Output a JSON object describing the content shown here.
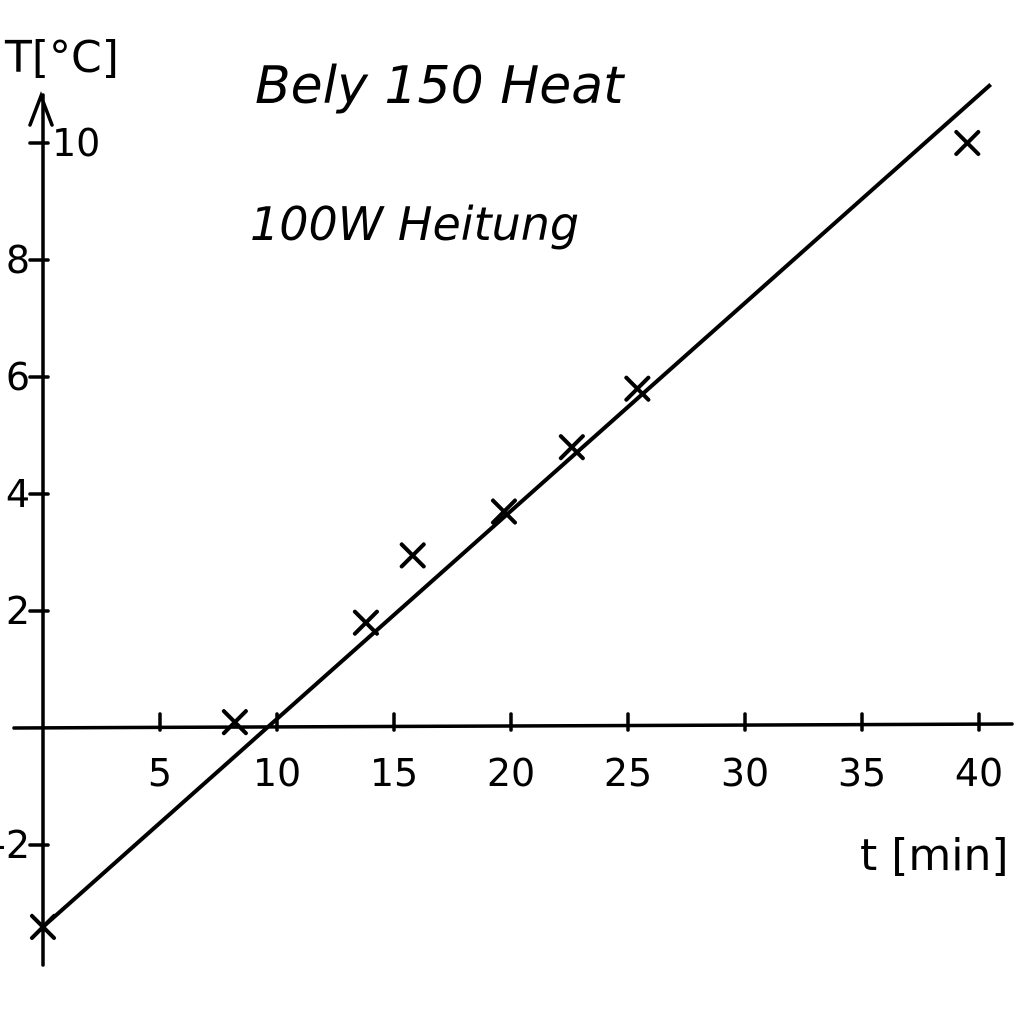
{
  "chart_data": {
    "type": "scatter",
    "title": "Bely 150 Heat",
    "subtitle": "100W Heitung",
    "xlabel": "t [min]",
    "ylabel": "T[°C]",
    "xlim": [
      0,
      42
    ],
    "ylim": [
      -4,
      11
    ],
    "x_ticks": [
      5,
      10,
      15,
      20,
      25,
      30,
      35,
      40
    ],
    "y_ticks": [
      -2,
      2,
      4,
      6,
      8,
      10
    ],
    "x_tick_labels": [
      "5",
      "10",
      "15",
      "20",
      "25",
      "30",
      "35",
      "40"
    ],
    "y_tick_labels": [
      "-2",
      "2",
      "4",
      "6",
      "8",
      "10"
    ],
    "grid": false,
    "series": [
      {
        "points": [
          {
            "x": 0,
            "y": -3.4
          },
          {
            "x": 8.2,
            "y": 0.1
          },
          {
            "x": 13.8,
            "y": 1.8
          },
          {
            "x": 15.8,
            "y": 2.95
          },
          {
            "x": 19.7,
            "y": 3.7
          },
          {
            "x": 22.6,
            "y": 4.8
          },
          {
            "x": 25.4,
            "y": 5.8
          },
          {
            "x": 39.5,
            "y": 10.0
          }
        ]
      }
    ],
    "fit_line": {
      "x": [
        0,
        40.5
      ],
      "y": [
        -3.4,
        11.0
      ]
    }
  }
}
